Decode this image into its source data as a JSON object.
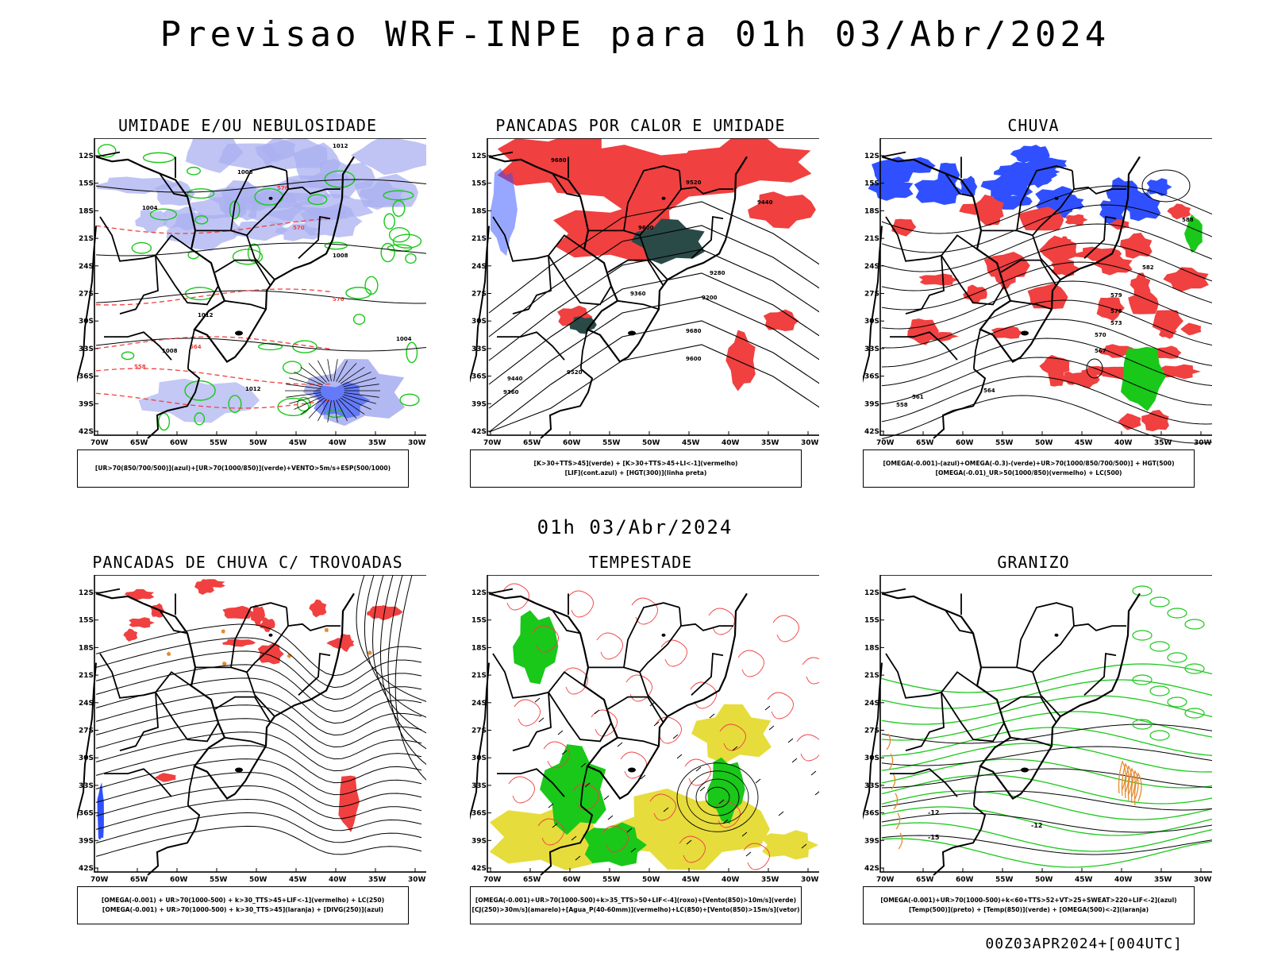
{
  "header": {
    "title": "Previsao WRF-INPE  para 01h 03/Abr/2024"
  },
  "middle_title": "01h 03/Abr/2024",
  "footer": "00Z03APR2024+[004UTC]",
  "axes": {
    "lat_ticks": [
      "12S",
      "15S",
      "18S",
      "21S",
      "24S",
      "27S",
      "30S",
      "33S",
      "36S",
      "39S",
      "42S"
    ],
    "lon_ticks": [
      "70W",
      "65W",
      "60W",
      "55W",
      "50W",
      "45W",
      "40W",
      "35W",
      "30W"
    ]
  },
  "panels": [
    {
      "id": "umidade",
      "title": "UMIDADE E/OU NEBULOSIDADE",
      "legend": [
        "[UR>70(850/700/500)](azul)+[UR>70(1000/850)](verde)+VENTO>5m/s+ESP(500/1000)"
      ],
      "labels": [
        "1012",
        "1008",
        "1004",
        "576",
        "570",
        "564",
        "558"
      ]
    },
    {
      "id": "pancadas-calor",
      "title": "PANCADAS POR CALOR E UMIDADE",
      "legend": [
        "[K>30+TTS>45](verde) + [K>30+TTS>45+LI<-1](vermelho)",
        "[LIF](cont.azul) + [HGT(300)](linha preta)"
      ],
      "labels": [
        "9680",
        "9600",
        "9520",
        "9440",
        "9360",
        "9280",
        "9200"
      ]
    },
    {
      "id": "chuva",
      "title": "CHUVA",
      "legend": [
        "[OMEGA(-0.001)-(azul)+OMEGA(-0.3)-(verde)+UR>70(1000/850/700/500)] + HGT(500)",
        "[OMEGA(-0.01)_UR>50(1000/850)(vermelho) + LC(500)"
      ],
      "labels": [
        "588",
        "582",
        "579",
        "576",
        "573",
        "570",
        "567",
        "564",
        "561",
        "558"
      ]
    },
    {
      "id": "trovoadas",
      "title": "PANCADAS DE CHUVA C/ TROVOADAS",
      "legend": [
        "[OMEGA(-0.001) + UR>70(1000-500) + k>30_TTS>45+LIF<-1](vermelho) + LC(250)",
        "[OMEGA(-0.001) + UR>70(1000-500) + k>30_TTS>45](laranja) + [DIVG(250)](azul)"
      ],
      "labels": []
    },
    {
      "id": "tempestade",
      "title": "TEMPESTADE",
      "legend": [
        "[OMEGA(-0.001)+UR>70(1000-500)+k>35_TTS>50+LIF<-4](roxo)+[Vento(850)>10m/s](verde)",
        "[CJ(250)>30m/s](amarelo)+[Agua_P(40-60mm)](vermelho)+LC(850)+[Vento(850)>15m/s](vetor)"
      ],
      "labels": []
    },
    {
      "id": "granizo",
      "title": "GRANIZO",
      "legend": [
        "[OMEGA(-0.001)+UR>70(1000-500)+k<60+TTS>52+VT>25+SWEAT>220+LIF<-2](azul)",
        "[Temp(500)](preto) + [Temp(850)](verde) + [OMEGA(500)<-2](laranja)"
      ],
      "labels": [
        "-12",
        "-15"
      ]
    }
  ],
  "colors": {
    "black": "#000000",
    "red": "#f04040",
    "green": "#19c819",
    "blue": "#3050ff",
    "lavender": "#aab0f0",
    "dark-teal": "#2a4a48",
    "yellow": "#e6dc3c",
    "orange": "#e68a2e"
  }
}
